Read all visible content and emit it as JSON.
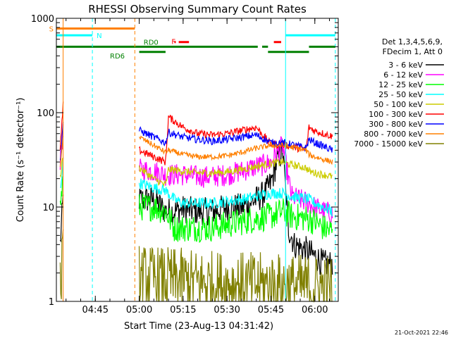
{
  "chart_data": {
    "type": "line",
    "title": "RHESSI Observing Summary Count Rates",
    "xlabel": "Start Time (23-Aug-13 04:31:42)",
    "ylabel": "Count Rate (s⁻¹ detector⁻¹)",
    "yscale": "log",
    "ylim": [
      1,
      1000
    ],
    "xlim": [
      "04:31:42",
      "06:08:00"
    ],
    "x_ticks": [
      "04:45",
      "05:00",
      "05:15",
      "05:30",
      "05:45",
      "06:00"
    ],
    "y_ticks": [
      "1",
      "10",
      "100",
      "1000"
    ],
    "footer_date": "21-Oct-2021 22:46",
    "legend": {
      "placement": "right",
      "header1": "Det 1,3,4,5,6,9,",
      "header2": "FDecim 1, Att 0",
      "entries": [
        {
          "label": "3 - 6 keV",
          "color": "#000000"
        },
        {
          "label": "6 - 12 keV",
          "color": "#ff00ff"
        },
        {
          "label": "12 - 25 keV",
          "color": "#00ff00"
        },
        {
          "label": "25 - 50 keV",
          "color": "#00ffff"
        },
        {
          "label": "50 - 100 keV",
          "color": "#cccc00"
        },
        {
          "label": "100 - 300 keV",
          "color": "#ff0000"
        },
        {
          "label": "300 - 800 keV",
          "color": "#0000ff"
        },
        {
          "label": "800 - 7000 keV",
          "color": "#ff8000"
        },
        {
          "label": "7000 - 15000 keV",
          "color": "#808000"
        }
      ]
    },
    "flags": [
      {
        "label": "S",
        "color": "#ff8000",
        "y": 780,
        "segments": [
          [
            "04:31:42",
            "04:58:30"
          ]
        ]
      },
      {
        "label": "N",
        "color": "#00ffff",
        "y": 660,
        "segments": [
          [
            "04:31:42",
            "04:44:00"
          ],
          [
            "05:50:00",
            "06:07:00"
          ]
        ]
      },
      {
        "label": "F",
        "color": "#ff0000",
        "y": 560,
        "segments": [
          [
            "05:12:00",
            "05:12:30"
          ],
          [
            "05:13:30",
            "05:17:00"
          ],
          [
            "05:46:00",
            "05:48:30"
          ]
        ]
      },
      {
        "label": "RD0",
        "color": "#008000",
        "y": 500,
        "segments": [
          [
            "04:31:42",
            "05:40:30"
          ],
          [
            "05:42:00",
            "05:44:00"
          ],
          [
            "05:58:00",
            "06:07:00"
          ]
        ]
      },
      {
        "label": "RD6",
        "color": "#008000",
        "y": 440,
        "segments": [
          [
            "05:00:00",
            "05:09:00"
          ],
          [
            "05:44:00",
            "05:58:00"
          ]
        ]
      }
    ],
    "vlines": [
      {
        "x": "04:31:42",
        "color": "#00ffff",
        "style": "solid"
      },
      {
        "x": "04:34:00",
        "color": "#ff8000",
        "style": "solid"
      },
      {
        "x": "04:44:00",
        "color": "#00ffff",
        "style": "dashed"
      },
      {
        "x": "04:58:30",
        "color": "#ff8000",
        "style": "dashed"
      },
      {
        "x": "05:50:00",
        "color": "#00ffff",
        "style": "solid"
      },
      {
        "x": "06:07:00",
        "color": "#00ffff",
        "style": "dashed"
      }
    ],
    "series": [
      {
        "name": "3 - 6 keV",
        "color": "#000000",
        "noise": 0.15,
        "segments": [
          {
            "x": [
              "04:33:00",
              "04:34:00"
            ],
            "y": [
              4,
              12
            ]
          },
          {
            "x": [
              "05:00:00",
              "05:05:00",
              "05:09:00",
              "05:12:00",
              "05:15:00",
              "05:20:00",
              "05:25:00",
              "05:30:00",
              "05:35:00",
              "05:40:00",
              "05:43:00",
              "05:45:00",
              "05:47:00",
              "05:49:00",
              "05:51:00",
              "05:53:00",
              "05:57:00",
              "06:00:00",
              "06:03:00",
              "06:06:00"
            ],
            "y": [
              12,
              12,
              9,
              9,
              9.5,
              9,
              9,
              10,
              10,
              12,
              14,
              18,
              30,
              40,
              6,
              4,
              3.5,
              3,
              2.5,
              2.5
            ]
          }
        ]
      },
      {
        "name": "6 - 12 keV",
        "color": "#ff00ff",
        "noise": 0.12,
        "segments": [
          {
            "x": [
              "04:33:00",
              "04:34:00"
            ],
            "y": [
              30,
              60
            ]
          },
          {
            "x": [
              "05:00:00",
              "05:05:00",
              "05:09:00",
              "05:12:00",
              "05:15:00",
              "05:20:00",
              "05:25:00",
              "05:30:00",
              "05:35:00",
              "05:40:00",
              "05:43:00",
              "05:45:00",
              "05:47:00",
              "05:49:00",
              "05:52:00",
              "05:58:00",
              "06:00:00",
              "06:03:00",
              "06:06:00"
            ],
            "y": [
              25,
              24,
              22,
              22,
              22,
              21,
              21,
              22,
              24,
              27,
              28,
              30,
              38,
              45,
              13,
              11,
              10,
              9,
              8.5
            ]
          }
        ]
      },
      {
        "name": "12 - 25 keV",
        "color": "#00ff00",
        "noise": 0.15,
        "segments": [
          {
            "x": [
              "04:33:00",
              "04:34:00"
            ],
            "y": [
              10,
              20
            ]
          },
          {
            "x": [
              "05:00:00",
              "05:05:00",
              "05:09:00",
              "05:12:00",
              "05:15:00",
              "05:20:00",
              "05:25:00",
              "05:30:00",
              "05:35:00",
              "05:40:00",
              "05:45:00",
              "05:49:00",
              "05:52:00",
              "05:58:00",
              "06:00:00",
              "06:03:00",
              "06:06:00"
            ],
            "y": [
              10,
              10,
              9,
              6,
              6,
              6,
              6,
              6.5,
              7,
              7.5,
              8,
              9,
              8,
              7.5,
              7,
              6,
              5.5
            ]
          }
        ]
      },
      {
        "name": "25 - 50 keV",
        "color": "#00ffff",
        "noise": 0.06,
        "segments": [
          {
            "x": [
              "04:33:00",
              "04:34:00"
            ],
            "y": [
              15,
              30
            ]
          },
          {
            "x": [
              "05:00:00",
              "05:05:00",
              "05:09:00",
              "05:12:00",
              "05:15:00",
              "05:20:00",
              "05:25:00",
              "05:30:00",
              "05:35:00",
              "05:40:00",
              "05:45:00",
              "05:49:00",
              "05:52:00",
              "05:58:00",
              "06:00:00",
              "06:03:00",
              "06:06:00"
            ],
            "y": [
              18,
              16,
              15,
              12,
              11,
              11,
              11,
              11.5,
              12,
              13,
              14,
              14,
              13,
              12,
              11,
              10,
              9
            ]
          }
        ]
      },
      {
        "name": "50 - 100 keV",
        "color": "#cccc00",
        "noise": 0.04,
        "segments": [
          {
            "x": [
              "04:33:00",
              "04:34:00"
            ],
            "y": [
              20,
              35
            ]
          },
          {
            "x": [
              "05:00:00",
              "05:05:00",
              "05:09:00",
              "05:10:00",
              "05:15:00",
              "05:20:00",
              "05:25:00",
              "05:30:00",
              "05:35:00",
              "05:40:00",
              "05:45:00",
              "05:49:00",
              "05:52:00",
              "05:57:00",
              "05:58:00",
              "06:00:00",
              "06:03:00",
              "06:06:00"
            ],
            "y": [
              26,
              20,
              17,
              25,
              24,
              23,
              23,
              23.5,
              25,
              27,
              29,
              30,
              28,
              26,
              24,
              23,
              22,
              21
            ]
          }
        ]
      },
      {
        "name": "100 - 300 keV",
        "color": "#ff0000",
        "noise": 0.04,
        "segments": [
          {
            "x": [
              "04:33:00",
              "04:34:00"
            ],
            "y": [
              40,
              120
            ]
          },
          {
            "x": [
              "05:00:00",
              "05:05:00",
              "05:09:00",
              "05:10:00",
              "05:15:00",
              "05:20:00",
              "05:25:00",
              "05:30:00",
              "05:35:00",
              "05:40:00",
              "05:45:00",
              "05:49:00",
              "05:52:00",
              "05:57:00",
              "05:58:00",
              "06:00:00",
              "06:03:00",
              "06:06:00"
            ],
            "y": [
              40,
              34,
              30,
              90,
              70,
              60,
              58,
              60,
              65,
              70,
              46,
              46,
              44,
              40,
              70,
              64,
              60,
              56
            ]
          }
        ]
      },
      {
        "name": "300 - 800 keV",
        "color": "#0000ff",
        "noise": 0.04,
        "segments": [
          {
            "x": [
              "04:33:00",
              "04:34:00"
            ],
            "y": [
              30,
              80
            ]
          },
          {
            "x": [
              "05:00:00",
              "05:05:00",
              "05:09:00",
              "05:10:00",
              "05:15:00",
              "05:20:00",
              "05:25:00",
              "05:30:00",
              "05:35:00",
              "05:40:00",
              "05:45:00",
              "05:49:00",
              "05:52:00",
              "05:57:00",
              "05:58:00",
              "06:00:00",
              "06:03:00",
              "06:06:00"
            ],
            "y": [
              65,
              55,
              48,
              62,
              55,
              52,
              50,
              52,
              55,
              58,
              48,
              48,
              46,
              42,
              52,
              48,
              44,
              40
            ]
          }
        ]
      },
      {
        "name": "800 - 7000 keV",
        "color": "#ff8000",
        "noise": 0.03,
        "segments": [
          {
            "x": [
              "04:33:00",
              "04:34:00"
            ],
            "y": [
              25,
              60
            ]
          },
          {
            "x": [
              "05:00:00",
              "05:05:00",
              "05:09:00",
              "05:10:00",
              "05:15:00",
              "05:20:00",
              "05:25:00",
              "05:30:00",
              "05:35:00",
              "05:40:00",
              "05:45:00",
              "05:49:00",
              "05:52:00",
              "05:57:00",
              "05:58:00",
              "06:00:00",
              "06:03:00",
              "06:06:00"
            ],
            "y": [
              55,
              45,
              38,
              40,
              36,
              34,
              34,
              35,
              38,
              42,
              45,
              45,
              43,
              40,
              36,
              34,
              32,
              30
            ]
          }
        ]
      },
      {
        "name": "7000 - 15000 keV",
        "color": "#808000",
        "noise": 0.35,
        "segments": [
          {
            "x": [
              "04:33:00",
              "04:34:00"
            ],
            "y": [
              1.5,
              3
            ]
          },
          {
            "x": [
              "05:00:00",
              "05:20:00",
              "05:40:00",
              "06:06:00"
            ],
            "y": [
              1.8,
              1.6,
              1.5,
              1.4
            ]
          }
        ]
      }
    ]
  }
}
